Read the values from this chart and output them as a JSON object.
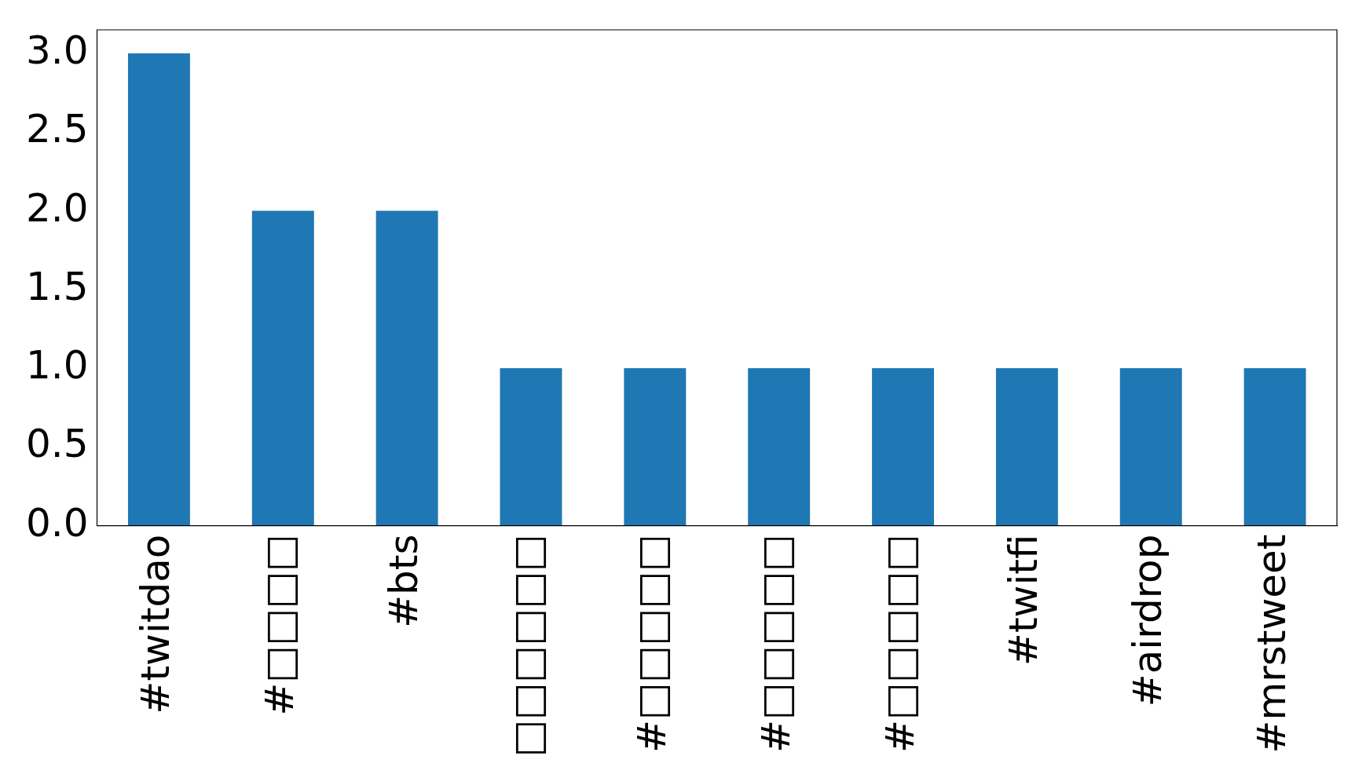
{
  "chart_data": {
    "type": "bar",
    "categories": [
      "#twitdao",
      "#□□□□",
      "#bts",
      "□□□□□□",
      "#□□□□□",
      "#□□□□□",
      "#□□□□□",
      "#twitfi",
      "#airdrop",
      "#mrstweet"
    ],
    "values": [
      3,
      2,
      2,
      1,
      1,
      1,
      1,
      1,
      1,
      1
    ],
    "color": "#1f77b4",
    "ylim": [
      0,
      3.15
    ],
    "yticks": [
      {
        "value": 0,
        "label": "0.0"
      },
      {
        "value": 0.5,
        "label": "0.5"
      },
      {
        "value": 1,
        "label": "1.0"
      },
      {
        "value": 1.5,
        "label": "1.5"
      },
      {
        "value": 2,
        "label": "2.0"
      },
      {
        "value": 2.5,
        "label": "2.5"
      },
      {
        "value": 3,
        "label": "3.0"
      }
    ],
    "grid": false,
    "legend": false
  }
}
